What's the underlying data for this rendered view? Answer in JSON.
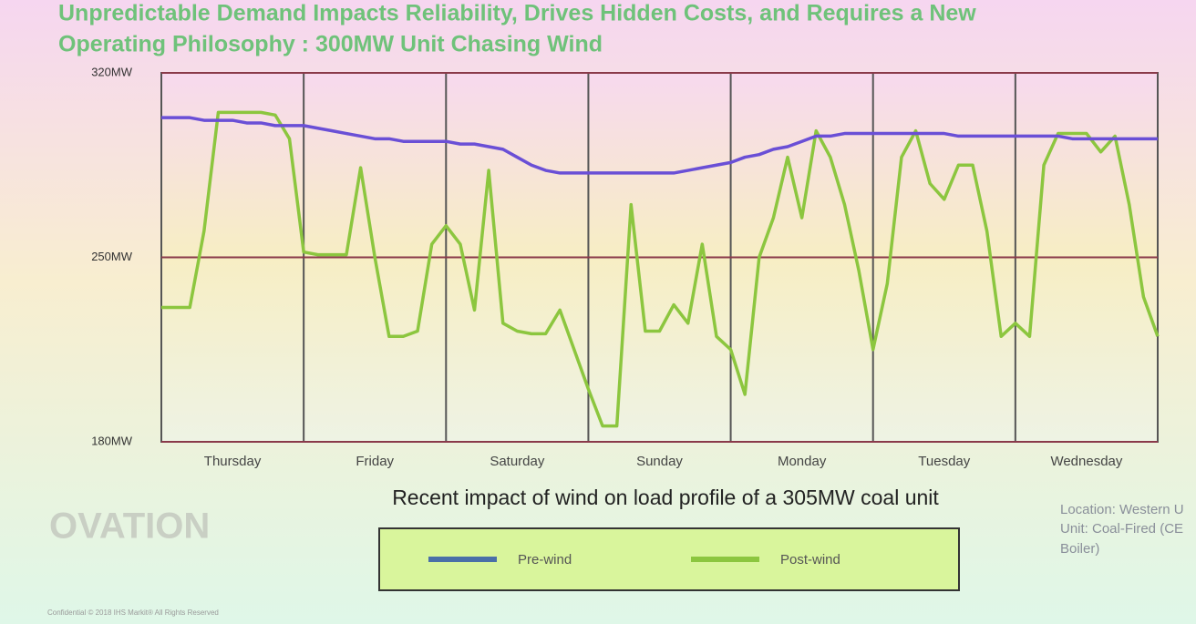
{
  "chart_data": {
    "type": "line",
    "title": "Unpredictable Demand Impacts Reliability, Drives Hidden Costs, and Requires a New",
    "subtitle": "Operating Philosophy :  300MW Unit Chasing Wind",
    "caption": "Recent impact of wind on load profile of a 305MW coal unit",
    "logo": "OVATION",
    "notes": [
      "Location: Western U",
      "Unit: Coal-Fired (CE",
      "Boiler)"
    ],
    "footer": "Confidential © 2018 IHS Markit® All Rights Reserved",
    "x": [
      0,
      0.1,
      0.2,
      0.3,
      0.4,
      0.5,
      0.6,
      0.7,
      0.8,
      0.9,
      1,
      1.1,
      1.2,
      1.3,
      1.4,
      1.5,
      1.6,
      1.7,
      1.8,
      1.9,
      2,
      2.1,
      2.2,
      2.3,
      2.4,
      2.5,
      2.6,
      2.7,
      2.8,
      2.9,
      3,
      3.1,
      3.2,
      3.3,
      3.4,
      3.5,
      3.6,
      3.7,
      3.8,
      3.9,
      4,
      4.1,
      4.2,
      4.3,
      4.4,
      4.5,
      4.6,
      4.7,
      4.8,
      4.9,
      5,
      5.1,
      5.2,
      5.3,
      5.4,
      5.5,
      5.6,
      5.7,
      5.8,
      5.9,
      6,
      6.1,
      6.2,
      6.3,
      6.4,
      6.5,
      6.6,
      6.7,
      6.8,
      6.9,
      7
    ],
    "series": [
      {
        "name": "Pre-wind",
        "color": "#6a4fd6",
        "legend_color": "#4a6fa8",
        "values": [
          303,
          303,
          303,
          302,
          302,
          302,
          301,
          301,
          300,
          300,
          300,
          299,
          298,
          297,
          296,
          295,
          295,
          294,
          294,
          294,
          294,
          293,
          293,
          292,
          291,
          288,
          285,
          283,
          282,
          282,
          282,
          282,
          282,
          282,
          282,
          282,
          282,
          283,
          284,
          285,
          286,
          288,
          289,
          291,
          292,
          294,
          296,
          296,
          297,
          297,
          297,
          297,
          297,
          297,
          297,
          297,
          296,
          296,
          296,
          296,
          296,
          296,
          296,
          296,
          295,
          295,
          295,
          295,
          295,
          295,
          295
        ]
      },
      {
        "name": "Post-wind",
        "color": "#8cc63f",
        "legend_color": "#8cc63f",
        "values": [
          231,
          231,
          231,
          260,
          305,
          305,
          305,
          305,
          304,
          295,
          252,
          251,
          251,
          251,
          284,
          250,
          220,
          220,
          222,
          255,
          262,
          255,
          230,
          283,
          225,
          222,
          221,
          221,
          230,
          215,
          200,
          186,
          186,
          270,
          222,
          222,
          232,
          225,
          255,
          220,
          215,
          198,
          250,
          265,
          288,
          265,
          298,
          288,
          270,
          245,
          215,
          240,
          288,
          298,
          278,
          272,
          285,
          285,
          260,
          220,
          225,
          220,
          285,
          297,
          297,
          297,
          290,
          296,
          270,
          235,
          220
        ]
      }
    ],
    "xlim": [
      0,
      7
    ],
    "xticks": [
      {
        "value": 0.5,
        "label": "Thursday"
      },
      {
        "value": 1.5,
        "label": "Friday"
      },
      {
        "value": 2.5,
        "label": "Saturday"
      },
      {
        "value": 3.5,
        "label": "Sunday"
      },
      {
        "value": 4.5,
        "label": "Monday"
      },
      {
        "value": 5.5,
        "label": "Tuesday"
      },
      {
        "value": 6.5,
        "label": "Wednesday"
      }
    ],
    "ylim": [
      180,
      320
    ],
    "yticks": [
      {
        "value": 180,
        "label": "180MW"
      },
      {
        "value": 250,
        "label": "250MW"
      },
      {
        "value": 320,
        "label": "320MW"
      }
    ],
    "grid": true
  }
}
